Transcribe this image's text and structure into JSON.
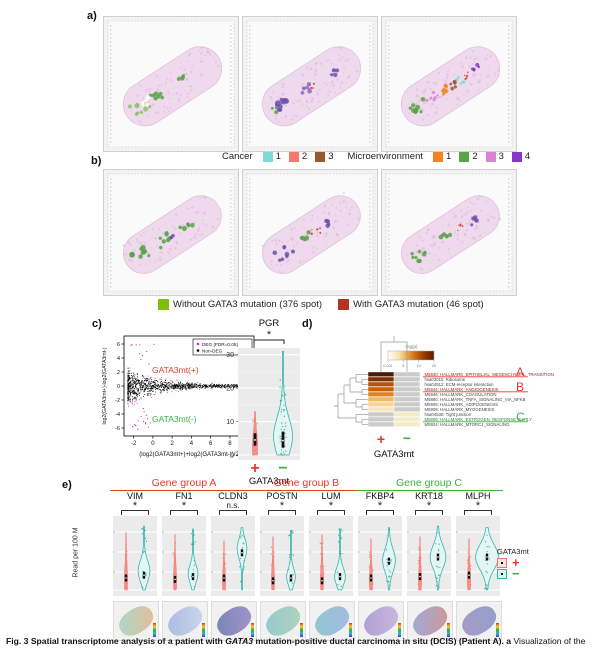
{
  "panels": {
    "a": {
      "label": "a)"
    },
    "b": {
      "label": "b)"
    },
    "c": {
      "label": "c)"
    },
    "d": {
      "label": "d)"
    },
    "e": {
      "label": "e)"
    }
  },
  "legend_clusters": {
    "cancer_label": "Cancer",
    "cancer": [
      {
        "label": "1",
        "color": "#7CD9D3"
      },
      {
        "label": "2",
        "color": "#F8776E"
      },
      {
        "label": "3",
        "color": "#96592B"
      }
    ],
    "micro_label": "Microenvironment",
    "micro": [
      {
        "label": "1",
        "color": "#F58220"
      },
      {
        "label": "2",
        "color": "#53A546"
      },
      {
        "label": "3",
        "color": "#D983D3"
      },
      {
        "label": "4",
        "color": "#8637C9"
      }
    ]
  },
  "legend_mutation": {
    "without": {
      "label": "Without GATA3 mutation (376 spot)",
      "color": "#7CC00A"
    },
    "with": {
      "label": "With GATA3 mutation (46 spot)",
      "color": "#B5341F"
    }
  },
  "c": {
    "scatter": {
      "legend": [
        {
          "label": "DEG (FDR=0.05)",
          "color": "#C92ECB"
        },
        {
          "label": "Non-DEG",
          "color": "#000000"
        }
      ],
      "group_pos": {
        "label": "GATA3mt(+)",
        "color": "#E8392F"
      },
      "group_neg": {
        "label": "GATA3mt(-)",
        "color": "#3CB043"
      },
      "xlabel": "(log2(GATA3mt+)+log2(GATA3mt-))/2",
      "ylabel": "log2(GATA3mt+)-log2(GATA3mt-)",
      "xticks": [
        "-2",
        "0",
        "2",
        "4",
        "6",
        "8",
        "10"
      ],
      "yticks": [
        "-6",
        "-4",
        "-2",
        "0",
        "2",
        "4",
        "6"
      ]
    },
    "violin": {
      "title": "PGR",
      "sig": "*",
      "yticks": [
        "0",
        "10",
        "20",
        "30"
      ],
      "categories": [
        "+",
        "−"
      ],
      "xlabel": "GATA3mt"
    }
  },
  "d": {
    "colorbar": {
      "label": "-log(p)",
      "ticks": [
        "0.001",
        "5",
        "10",
        "20"
      ]
    },
    "rows": [
      {
        "name": "M5930: HALLMARK_EPITHELIAL_MESENCHYMAL_TRANSITION",
        "underline": "red",
        "marker": "A",
        "plus": "#4A1C00",
        "minus": "#CBCBCB"
      },
      {
        "name": "hsa03010: Ribosome",
        "underline": null,
        "marker": null,
        "plus": "#7E2F04",
        "minus": "#CBCBCB"
      },
      {
        "name": "hsa04512: ECM-receptor interaction",
        "underline": null,
        "marker": null,
        "plus": "#B35410",
        "minus": "#CBCBCB"
      },
      {
        "name": "M5944: HALLMARK_ANGIOGENESIS",
        "underline": "red",
        "marker": "B",
        "plus": "#C4620F",
        "minus": "#CBCBCB"
      },
      {
        "name": "M5946: HALLMARK_COAGULATION",
        "underline": null,
        "marker": null,
        "plus": "#DA8428",
        "minus": "#CBCBCB"
      },
      {
        "name": "M5890: HALLMARK_TNFA_SIGNALING_VIA_NFKB",
        "underline": null,
        "marker": null,
        "plus": "#EEB96B",
        "minus": "#CBCBCB"
      },
      {
        "name": "M5905: HALLMARK_ADIPOGENESIS",
        "underline": null,
        "marker": null,
        "plus": "#F5D695",
        "minus": "#CBCBCB"
      },
      {
        "name": "M5909: HALLMARK_MYOGENESIS",
        "underline": null,
        "marker": null,
        "plus": "#F9E7B8",
        "minus": "#CBCBCB"
      },
      {
        "name": "hsa04530: Tight junction",
        "underline": null,
        "marker": null,
        "plus": "#CBCBCB",
        "minus": "#F4ECC8"
      },
      {
        "name": "M5906: HALLMARK_ESTROGEN_RESPONSE_EARLY",
        "underline": "green",
        "marker": "C",
        "plus": "#CBCBCB",
        "minus": "#F4ECC8"
      },
      {
        "name": "M5924: HALLMARK_MTORC1_SIGNALING",
        "underline": null,
        "marker": null,
        "plus": "#CBCBCB",
        "minus": "#F4ECC8"
      }
    ],
    "plus": "+",
    "minus": "−",
    "xlabel": "GATA3mt"
  },
  "e": {
    "ylabel": "Read per 100 M",
    "groups": [
      {
        "label": "Gene group A",
        "color": "#E8392F",
        "genes": [
          {
            "name": "VIM",
            "sig": "*"
          },
          {
            "name": "FN1",
            "sig": "*"
          },
          {
            "name": "CLDN3",
            "sig": "n.s."
          }
        ]
      },
      {
        "label": "Gene group B",
        "color": "#E8392F",
        "genes": [
          {
            "name": "POSTN",
            "sig": "*"
          },
          {
            "name": "LUM",
            "sig": "*"
          }
        ]
      },
      {
        "label": "Gene group C",
        "color": "#3CB043",
        "genes": [
          {
            "name": "FKBP4",
            "sig": "*"
          },
          {
            "name": "KRT18",
            "sig": "*"
          },
          {
            "name": "MLPH",
            "sig": "*"
          }
        ]
      }
    ],
    "legend": {
      "title": "GATA3mt",
      "plus": {
        "label": "+",
        "color": "#F8766D"
      },
      "minus": {
        "label": "−",
        "color": "#2FB8AE"
      }
    }
  },
  "caption": {
    "segments": [
      {
        "text": "Fig. 3 Spatial transcriptome analysis of a patient with ",
        "bold": true,
        "italic": false
      },
      {
        "text": "GATA3",
        "bold": true,
        "italic": true
      },
      {
        "text": " mutation-positive ductal carcinoma in situ (DCIS) (Patient A). ",
        "bold": true,
        "italic": false
      },
      {
        "text": "a",
        "bold": true,
        "italic": false
      },
      {
        "text": " Visualization of the",
        "bold": false,
        "italic": false
      }
    ]
  }
}
